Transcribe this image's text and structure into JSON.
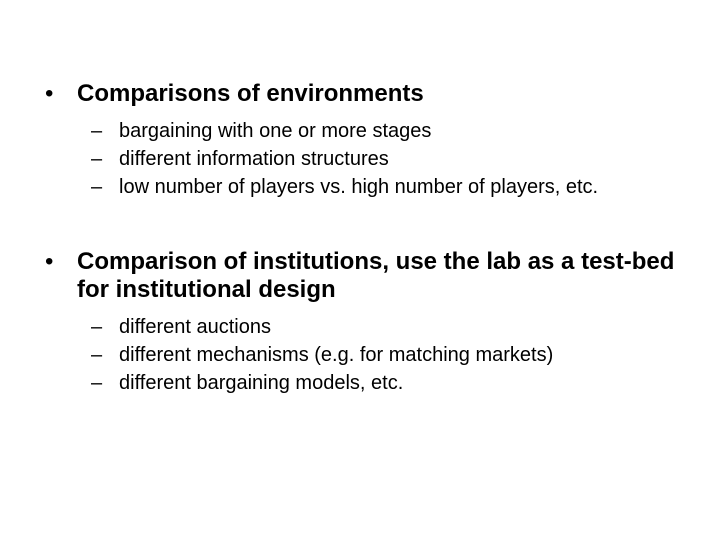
{
  "slide": {
    "background_color": "#ffffff",
    "text_color": "#000000",
    "font_family": "Arial",
    "heading_fontsize": 24,
    "heading_fontweight": "bold",
    "sub_fontsize": 20,
    "sub_fontweight": "normal",
    "bullet_char": "•",
    "dash_char": "–",
    "items": [
      {
        "heading": "Comparisons of environments",
        "subitems": [
          "bargaining with one or more stages",
          "different information structures",
          "low number of players vs. high number of players, etc."
        ]
      },
      {
        "heading": "Comparison of institutions, use the lab as a test-bed for institutional design",
        "subitems": [
          "different auctions",
          "different mechanisms (e.g. for  matching markets)",
          "different bargaining models, etc."
        ]
      }
    ]
  }
}
